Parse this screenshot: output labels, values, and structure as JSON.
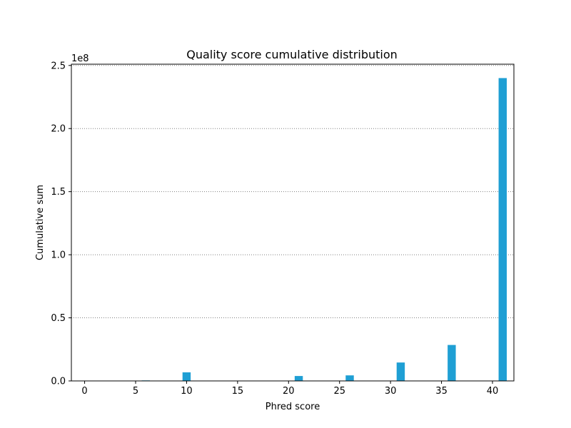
{
  "chart_data": {
    "type": "bar",
    "title": "Quality score cumulative distribution",
    "xlabel": "Phred score",
    "ylabel": "Cumulative sum",
    "y_offset_label": "1e8",
    "x": [
      2,
      6,
      10,
      21,
      26,
      31,
      36,
      41
    ],
    "values": [
      0,
      400000,
      6800000,
      3900000,
      4400000,
      14600000,
      28500000,
      240000000
    ],
    "xlim": [
      -1.3,
      42.1
    ],
    "ylim": [
      0,
      251000000
    ],
    "xticks": [
      0,
      5,
      10,
      15,
      20,
      25,
      30,
      35,
      40
    ],
    "xtick_labels": [
      "0",
      "5",
      "10",
      "15",
      "20",
      "25",
      "30",
      "35",
      "40"
    ],
    "yticks": [
      0,
      50000000,
      100000000,
      150000000,
      200000000,
      250000000
    ],
    "ytick_labels": [
      "0.0",
      "0.5",
      "1.0",
      "1.5",
      "2.0",
      "2.5"
    ],
    "bar_width": 0.8,
    "grid": "horizontal dotted",
    "colors": {
      "bar": "#1f9fd4",
      "grid": "#808080",
      "axis": "#000000"
    }
  }
}
